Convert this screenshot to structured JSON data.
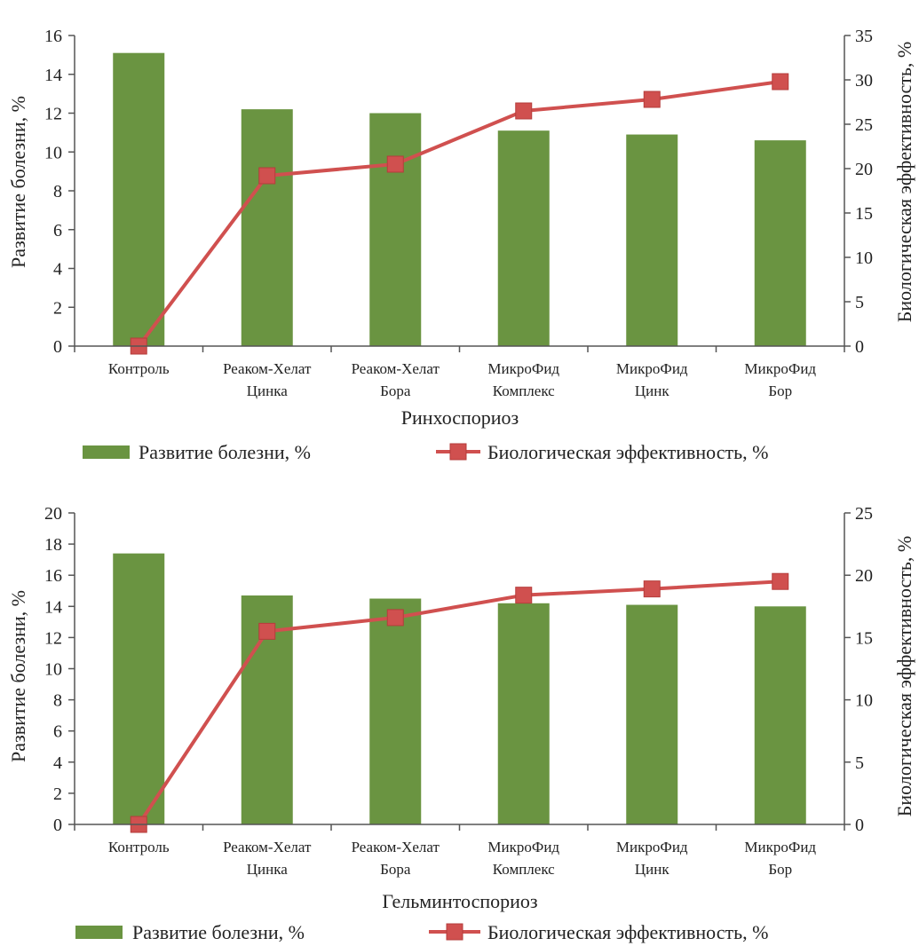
{
  "colors": {
    "bar": "#6a9441",
    "line": "#d0504f",
    "marker_edge": "#b53d3b",
    "axis": "#555555"
  },
  "icons": {
    "bar_legend": "green-rectangle-icon",
    "line_legend": "red-line-square-marker-icon"
  },
  "chart_data": [
    {
      "type": "bar",
      "xlabel": "Ринхоспориоз",
      "ylabel": "Развитие болезни, %",
      "y2label": "Биологическая эффективность, %",
      "categories": [
        [
          "Контроль"
        ],
        [
          "Реаком-Хелат",
          "Цинка"
        ],
        [
          "Реаком-Хелат",
          "Бора"
        ],
        [
          "МикроФид",
          "Комплекс"
        ],
        [
          "МикроФид",
          "Цинк"
        ],
        [
          "МикроФид",
          "Бор"
        ]
      ],
      "ylim": [
        0,
        16
      ],
      "yticks": [
        "0",
        "2",
        "4",
        "6",
        "8",
        "10",
        "12",
        "14",
        "16"
      ],
      "y2lim": [
        0,
        35
      ],
      "y2ticks": [
        "0",
        "5",
        "10",
        "15",
        "20",
        "25",
        "30",
        "35"
      ],
      "series": [
        {
          "name": "Развитие болезни, %",
          "type": "bar",
          "axis": "left",
          "values": [
            15.1,
            12.2,
            12.0,
            11.1,
            10.9,
            10.6
          ]
        },
        {
          "name": "Биологическая эффективность, %",
          "type": "line",
          "axis": "right",
          "values": [
            0,
            19.2,
            20.5,
            26.5,
            27.8,
            29.8
          ]
        }
      ],
      "legend": "bottom"
    },
    {
      "type": "bar",
      "xlabel": "Гельминтоспориоз",
      "ylabel": "Развитие болезни, %",
      "y2label": "Биологическая эффективность, %",
      "categories": [
        [
          "Контроль"
        ],
        [
          "Реаком-Хелат",
          "Цинка"
        ],
        [
          "Реаком-Хелат",
          "Бора"
        ],
        [
          "МикроФид",
          "Комплекс"
        ],
        [
          "МикроФид",
          "Цинк"
        ],
        [
          "МикроФид",
          "Бор"
        ]
      ],
      "ylim": [
        0,
        20
      ],
      "yticks": [
        "0",
        "2",
        "4",
        "6",
        "8",
        "10",
        "12",
        "14",
        "16",
        "18",
        "20"
      ],
      "y2lim": [
        0,
        25
      ],
      "y2ticks": [
        "0",
        "5",
        "10",
        "15",
        "20",
        "25"
      ],
      "series": [
        {
          "name": "Развитие болезни, %",
          "type": "bar",
          "axis": "left",
          "values": [
            17.4,
            14.7,
            14.5,
            14.2,
            14.1,
            14.0
          ]
        },
        {
          "name": "Биологическая эффективность, %",
          "type": "line",
          "axis": "right",
          "values": [
            0,
            15.5,
            16.6,
            18.4,
            18.9,
            19.5
          ]
        }
      ],
      "legend": "bottom"
    }
  ]
}
